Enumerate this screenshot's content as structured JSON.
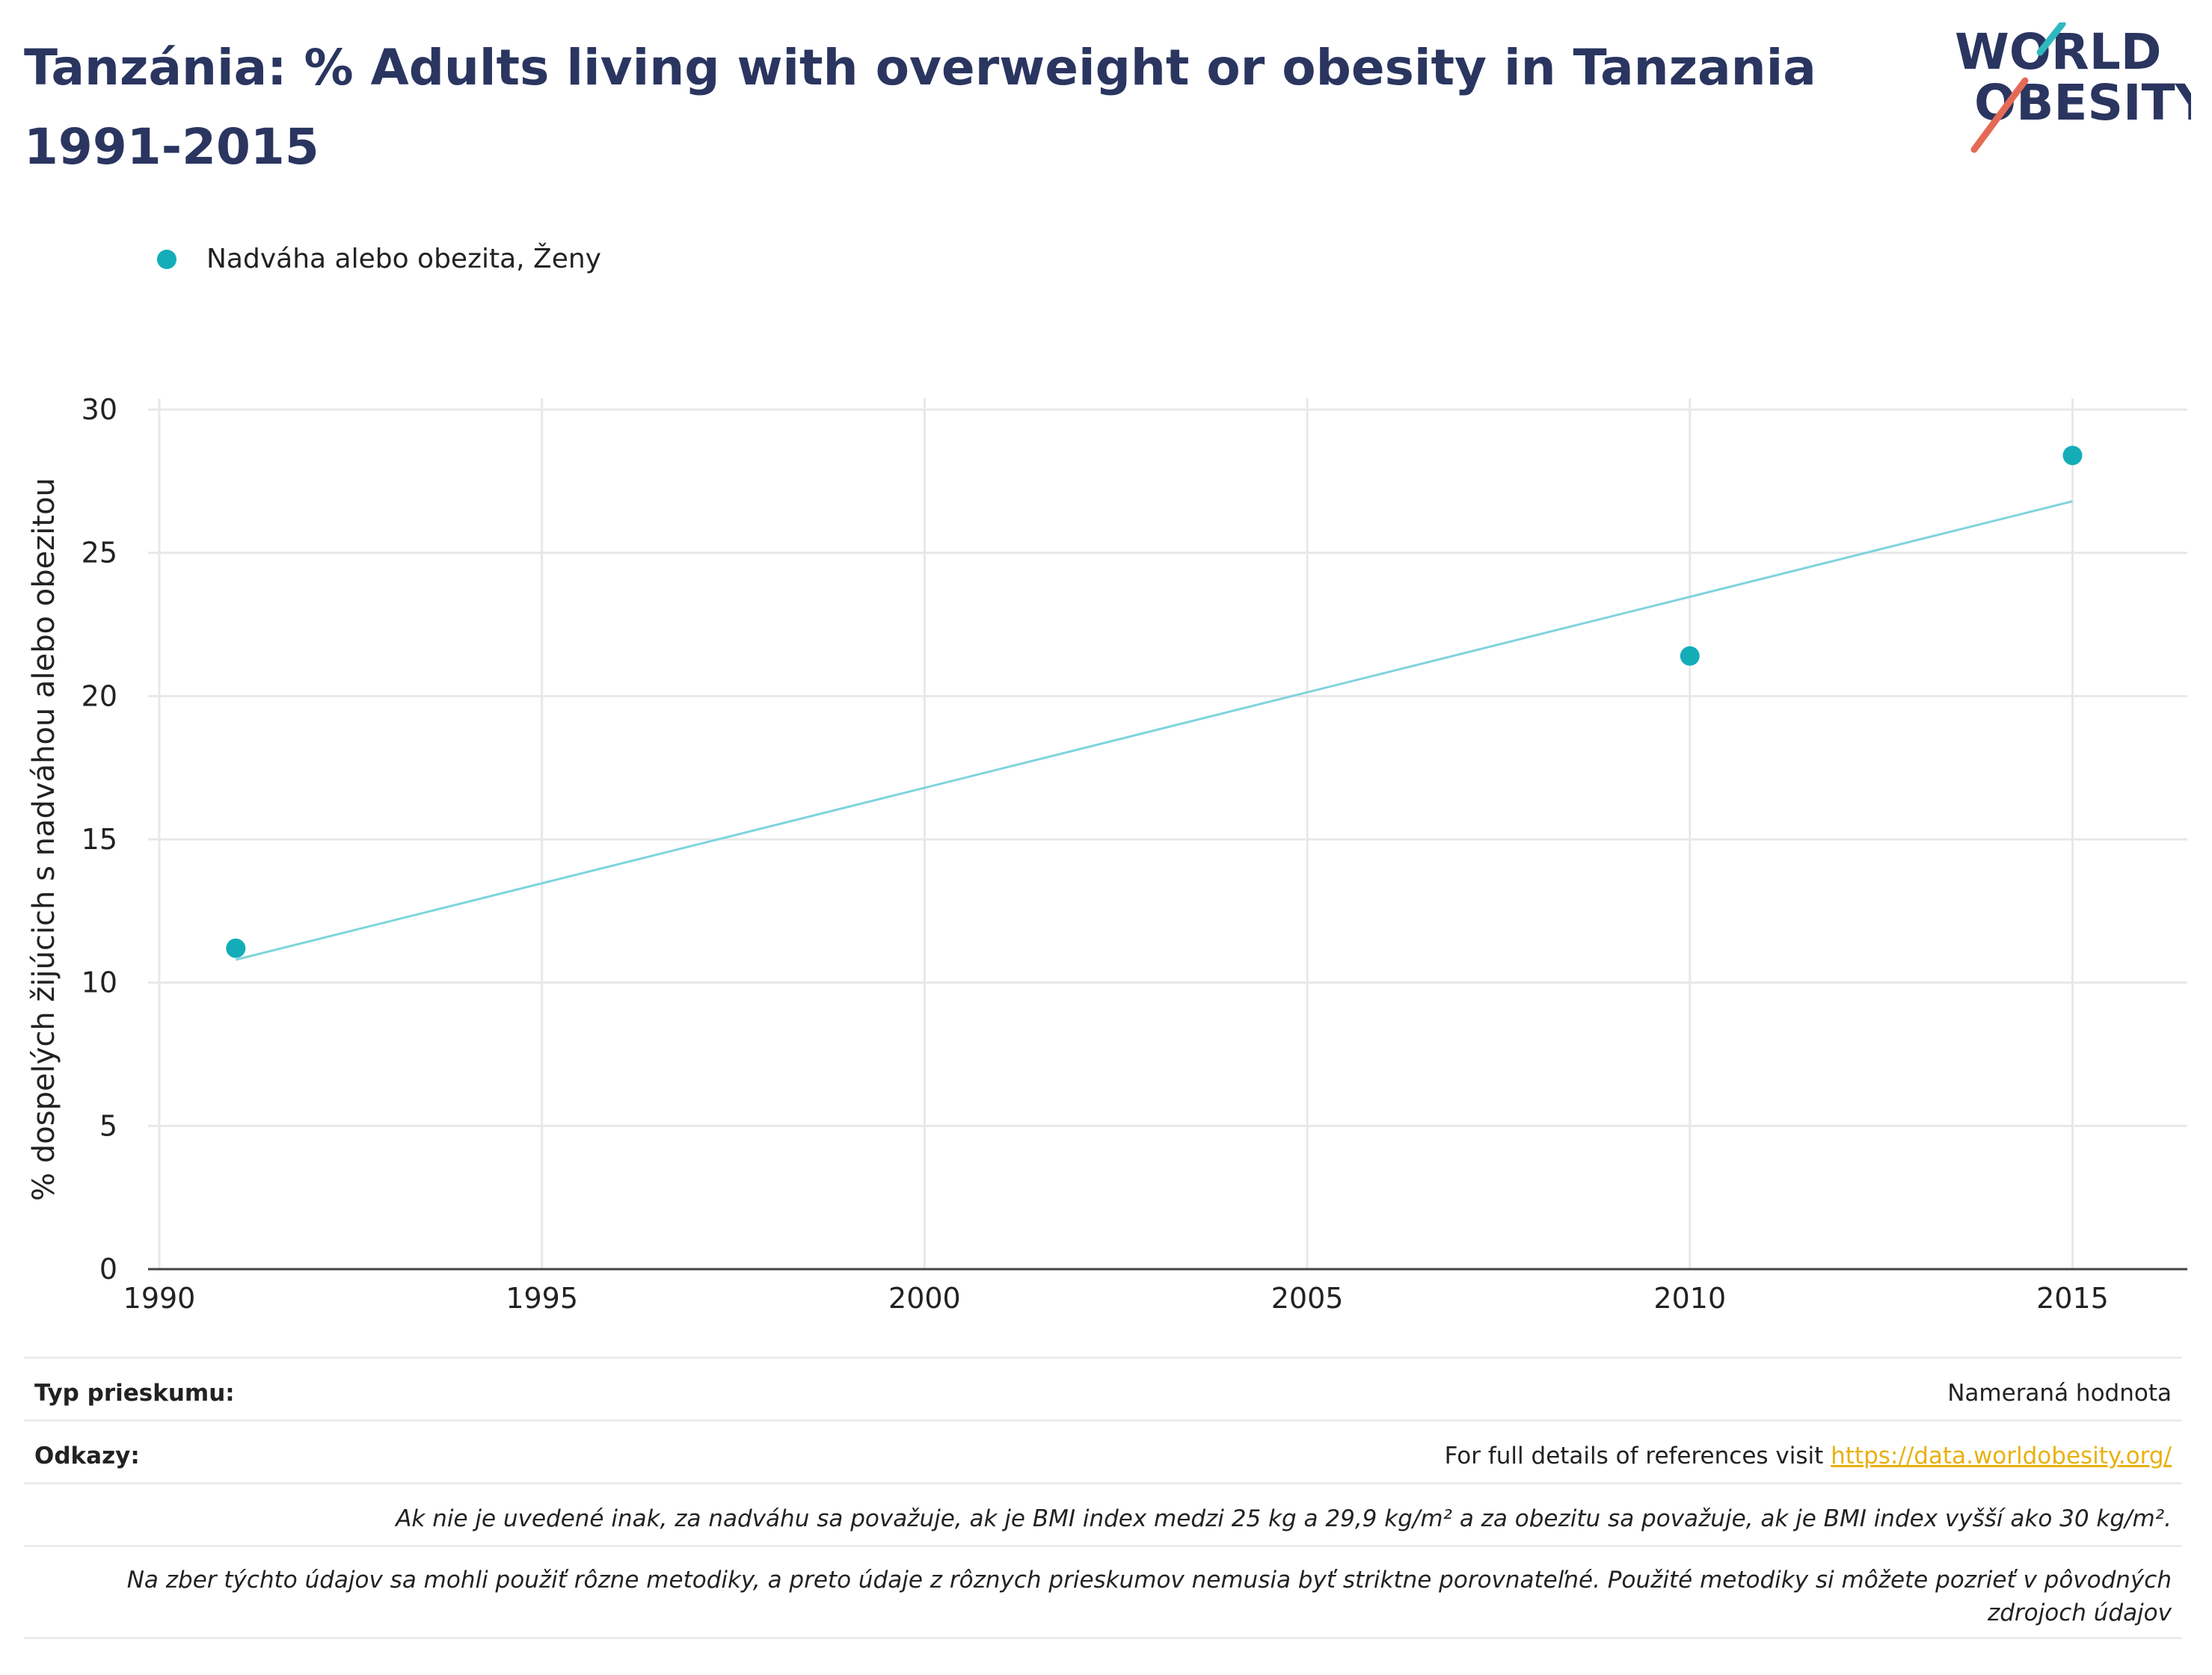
{
  "header": {
    "title": "Tanzánia: % Adults living with overweight or obesity in Tanzania 1991-2015",
    "logo_line1": "WORLD",
    "logo_line2": "OBESITY"
  },
  "colors": {
    "title": "#2a3560",
    "series": "#13adb8",
    "trend": "#7fd4dc",
    "grid": "#e8e8e8",
    "link": "#e8b10f",
    "logo_teal": "#2fb8c0",
    "logo_red": "#e56a56"
  },
  "legend": {
    "label": "Nadváha alebo obezita, Ženy"
  },
  "chart_data": {
    "type": "scatter",
    "title": "Tanzánia: % Adults living with overweight or obesity in Tanzania 1991-2015",
    "ylabel": "% dospelých žijúcich s nadváhou alebo obezitou",
    "xlabel": "",
    "xlim": [
      1990,
      2016.5
    ],
    "ylim": [
      0,
      30
    ],
    "x_ticks": [
      1990,
      1995,
      2000,
      2005,
      2010,
      2015
    ],
    "y_ticks": [
      0,
      5,
      10,
      15,
      20,
      25,
      30
    ],
    "grid": true,
    "legend_position": "top-left",
    "series": [
      {
        "name": "Nadváha alebo obezita, Ženy",
        "points": [
          {
            "x": 1991,
            "y": 11.2
          },
          {
            "x": 2010,
            "y": 21.4
          },
          {
            "x": 2015,
            "y": 28.4
          }
        ]
      }
    ],
    "trendline": [
      {
        "x": 1991,
        "y": 10.8
      },
      {
        "x": 2015,
        "y": 26.8
      }
    ]
  },
  "footer": {
    "survey_type_label": "Typ prieskumu:",
    "survey_type_value": "Nameraná hodnota",
    "references_label": "Odkazy:",
    "references_text": "For full details of references visit ",
    "references_link": "https://data.worldobesity.org/",
    "note_bmi": "Ak nie je uvedené inak, za nadváhu sa považuje, ak je BMI index medzi 25 kg a 29,9 kg/m² a za obezitu sa považuje, ak je BMI index vyšší ako 30 kg/m².",
    "note_methods": "Na zber týchto údajov sa mohli použiť rôzne metodiky, a preto údaje z rôznych prieskumov nemusia byť striktne porovnateľné. Použité metodiky si môžete pozrieť v pôvodných zdrojoch údajov"
  }
}
